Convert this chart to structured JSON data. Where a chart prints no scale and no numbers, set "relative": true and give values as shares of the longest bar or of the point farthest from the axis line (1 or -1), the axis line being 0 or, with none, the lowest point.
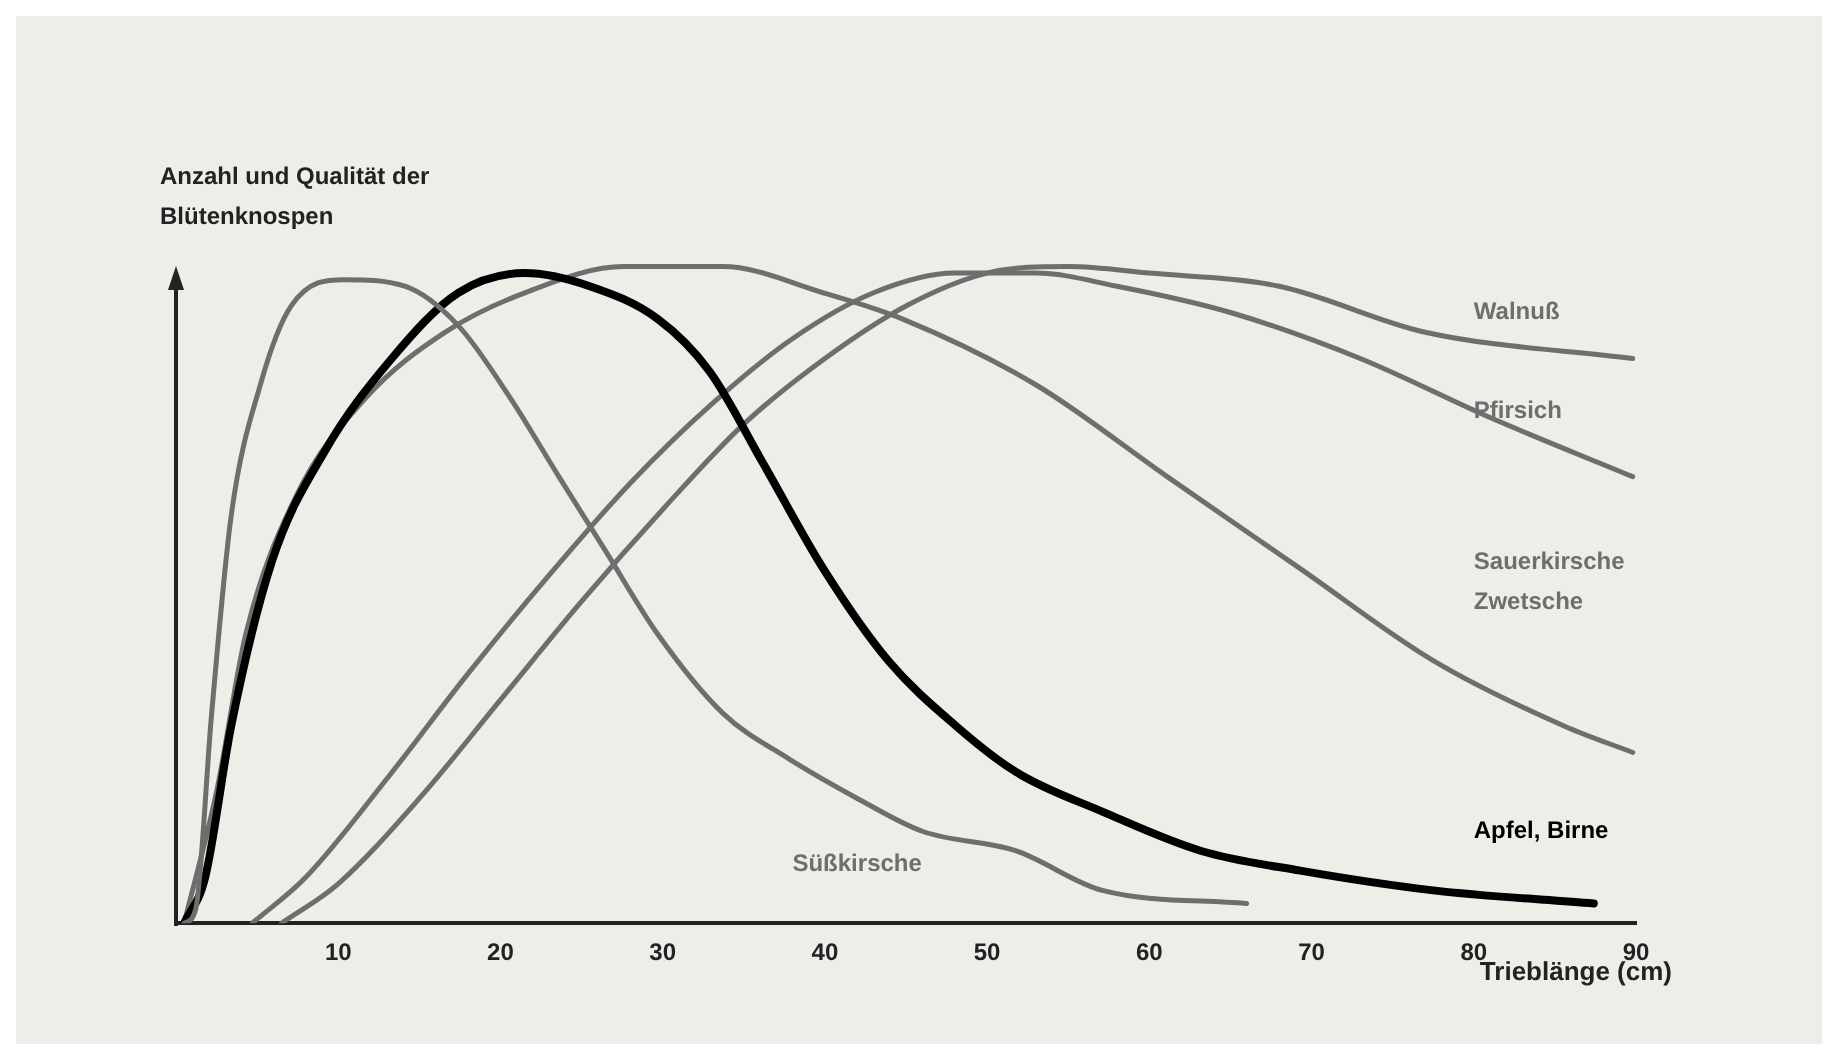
{
  "chart_data": {
    "type": "line",
    "relative": true,
    "ylabel": "Anzahl und Qualität der Blütenknospen",
    "xlabel": "Trieblänge (cm)",
    "xlim": [
      0,
      90
    ],
    "xticks": [
      10,
      20,
      30,
      40,
      50,
      60,
      70,
      80,
      90
    ],
    "grid": false,
    "legend": false,
    "marker": "none",
    "line_style": "solid",
    "series": [
      {
        "name": "Süßkirsche",
        "color": "#6e6e6e",
        "x": [
          0.5,
          1.2,
          2.2,
          3.4,
          5.2,
          7.1,
          10.4,
          14.1,
          17.4,
          20.6,
          23.6,
          26.4,
          29.7,
          33.7,
          37.8,
          42.0,
          46.0,
          51.8,
          57.1,
          66.0
        ],
        "values": [
          0,
          0.02,
          0.32,
          0.62,
          0.82,
          0.94,
          0.98,
          0.97,
          0.91,
          0.8,
          0.68,
          0.57,
          0.44,
          0.32,
          0.25,
          0.19,
          0.14,
          0.11,
          0.05,
          0.03
        ]
      },
      {
        "name": "Apfel, Birne",
        "color": "#000000",
        "x": [
          0.5,
          1.8,
          3.4,
          5.9,
          9.2,
          13.3,
          17.4,
          21.5,
          25.5,
          29.7,
          32.9,
          36.2,
          39.9,
          43.9,
          48.1,
          51.8,
          57.1,
          63.2,
          69.3,
          77.5,
          87.4
        ],
        "values": [
          0,
          0.07,
          0.3,
          0.55,
          0.72,
          0.86,
          0.96,
          0.99,
          0.97,
          0.92,
          0.84,
          0.7,
          0.54,
          0.4,
          0.3,
          0.23,
          0.17,
          0.11,
          0.08,
          0.05,
          0.03
        ]
      },
      {
        "name": "Sauerkirsche Zwetsche",
        "color": "#6e6e6e",
        "x": [
          0.5,
          2.5,
          4.3,
          7.4,
          11.7,
          16.6,
          21.5,
          27.6,
          33.7,
          39.9,
          44.8,
          53.0,
          61.1,
          69.3,
          77.5,
          85.6,
          89.8
        ],
        "values": [
          0,
          0.2,
          0.44,
          0.65,
          0.8,
          0.9,
          0.96,
          1,
          1,
          0.96,
          0.92,
          0.82,
          0.68,
          0.54,
          0.4,
          0.3,
          0.26
        ]
      },
      {
        "name": "Pfirsich",
        "color": "#6e6e6e",
        "x": [
          4.7,
          8,
          13,
          18,
          23,
          28,
          33,
          38,
          43,
          48,
          53,
          58,
          65,
          73,
          81,
          89.8
        ],
        "values": [
          0,
          0.07,
          0.22,
          0.38,
          0.53,
          0.67,
          0.79,
          0.89,
          0.96,
          0.99,
          0.99,
          0.97,
          0.93,
          0.86,
          0.77,
          0.68
        ]
      },
      {
        "name": "Walnuß",
        "color": "#6e6e6e",
        "x": [
          6.5,
          10,
          15,
          20,
          25,
          30,
          35,
          40,
          45,
          50,
          55,
          60,
          68,
          77,
          89.8
        ],
        "values": [
          0,
          0.06,
          0.19,
          0.34,
          0.49,
          0.63,
          0.76,
          0.86,
          0.94,
          0.99,
          1,
          0.99,
          0.97,
          0.9,
          0.86
        ]
      }
    ]
  }
}
